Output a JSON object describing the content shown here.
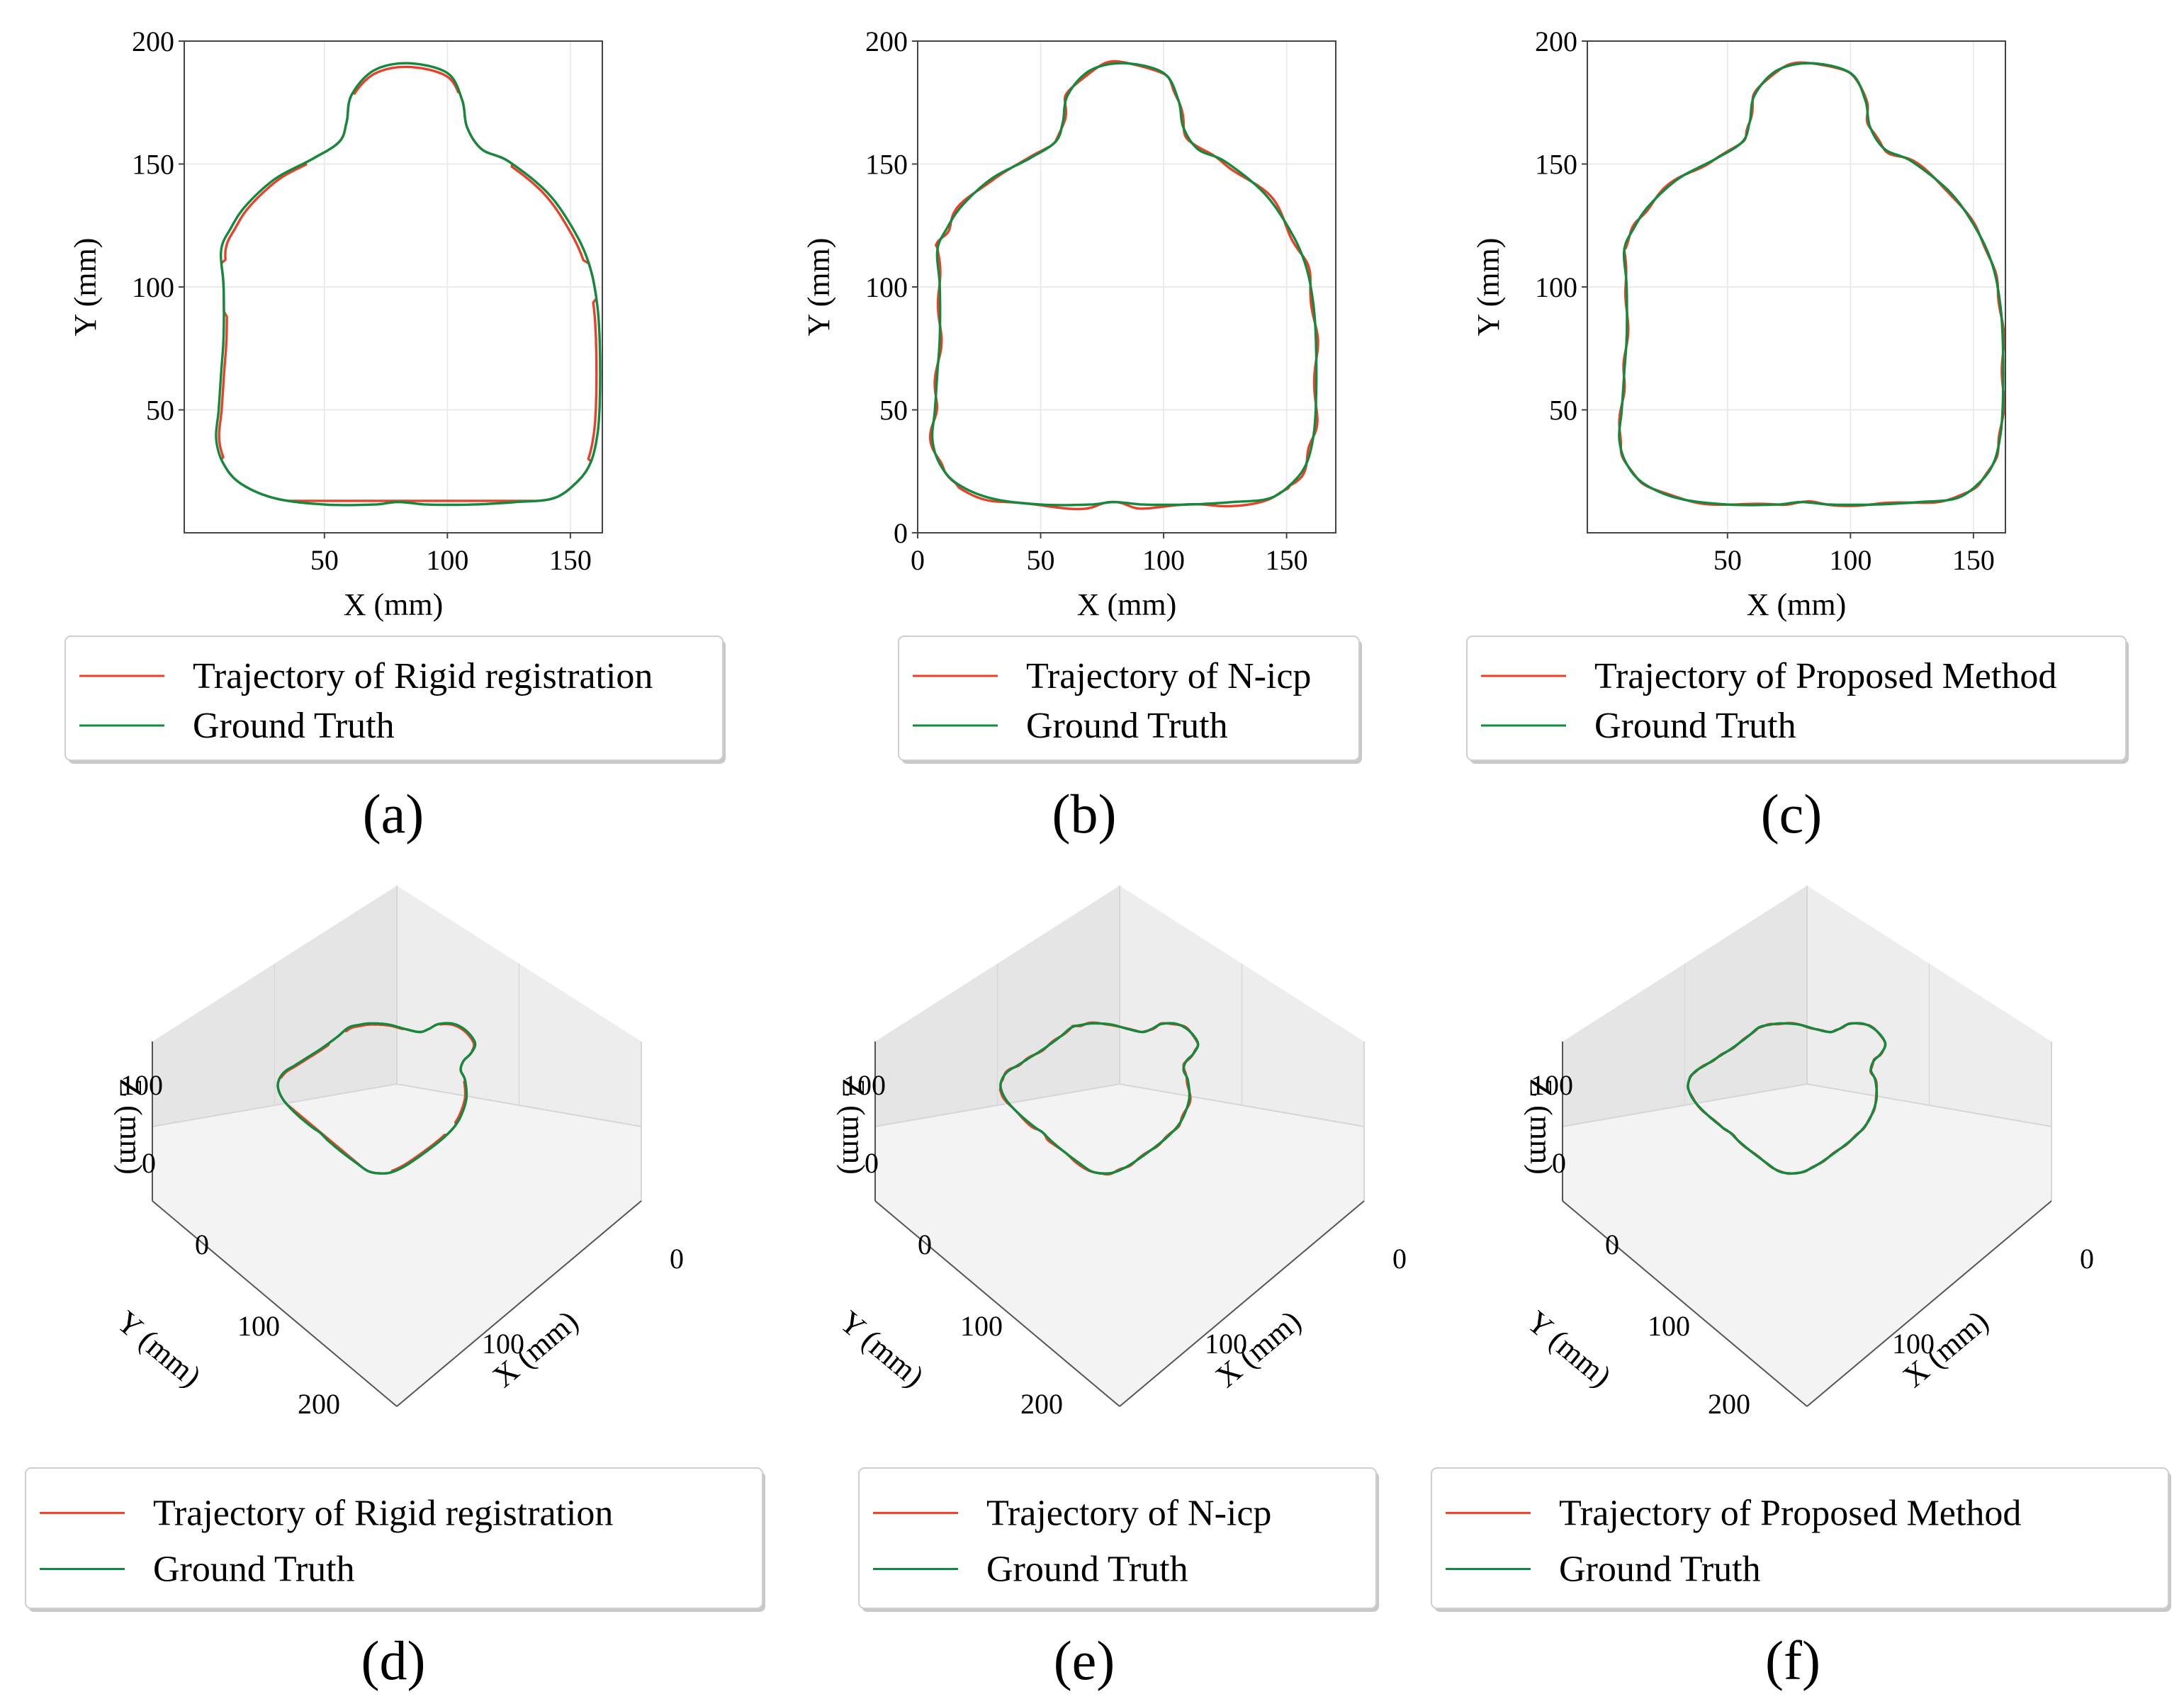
{
  "colors": {
    "trajectory": "#e8402a",
    "ground_truth": "#118a3e",
    "frame": "#444444",
    "grid": "#ebebeb"
  },
  "chart_data": [
    {
      "id": "a",
      "type": "line",
      "caption": "(a)",
      "title": "",
      "xlabel": "X (mm)",
      "ylabel": "Y (mm)",
      "xticks": [
        "50",
        "100",
        "150"
      ],
      "yticks": [
        "50",
        "100",
        "150",
        "200"
      ],
      "xlim": [
        -7,
        163
      ],
      "ylim": [
        0,
        200
      ],
      "legend": {
        "placement": "below",
        "entries": [
          "Trajectory of Rigid registration",
          "Ground Truth"
        ]
      },
      "series": [
        {
          "name": "Trajectory of Rigid registration",
          "shape": "rigid_offset",
          "offset_x": 0,
          "offset_y": 0
        },
        {
          "name": "Ground Truth",
          "shape": "outline"
        }
      ]
    },
    {
      "id": "b",
      "type": "line",
      "caption": "(b)",
      "title": "",
      "xlabel": "X (mm)",
      "ylabel": "Y (mm)",
      "xticks": [
        "0",
        "50",
        "100",
        "150"
      ],
      "yticks": [
        "0",
        "50",
        "100",
        "150",
        "200"
      ],
      "xlim": [
        0,
        170
      ],
      "ylim": [
        0,
        200
      ],
      "legend": {
        "placement": "below",
        "entries": [
          "Trajectory of N-icp",
          "Ground Truth"
        ]
      },
      "series": [
        {
          "name": "Trajectory of N-icp",
          "shape": "wobble"
        },
        {
          "name": "Ground Truth",
          "shape": "outline"
        }
      ]
    },
    {
      "id": "c",
      "type": "line",
      "caption": "(c)",
      "title": "",
      "xlabel": "X (mm)",
      "ylabel": "Y (mm)",
      "xticks": [
        "50",
        "100",
        "150"
      ],
      "yticks": [
        "50",
        "100",
        "150",
        "200"
      ],
      "xlim": [
        -7,
        163
      ],
      "ylim": [
        0,
        200
      ],
      "legend": {
        "placement": "below",
        "entries": [
          "Trajectory of Proposed Method",
          "Ground Truth"
        ]
      },
      "series": [
        {
          "name": "Trajectory of Proposed Method",
          "shape": "small_wobble"
        },
        {
          "name": "Ground Truth",
          "shape": "outline"
        }
      ]
    },
    {
      "id": "d",
      "type": "line",
      "caption": "(d)",
      "projection": "3d",
      "xlabel": "X (mm)",
      "ylabel": "Y (mm)",
      "zlabel": "Z (mm)",
      "xticks": [
        "0",
        "100"
      ],
      "yticks": [
        "0",
        "100",
        "200"
      ],
      "zticks": [
        "0",
        "100"
      ],
      "legend": {
        "placement": "below",
        "entries": [
          "Trajectory of Rigid registration",
          "Ground Truth"
        ]
      },
      "series": [
        {
          "name": "Trajectory of Rigid registration"
        },
        {
          "name": "Ground Truth"
        }
      ]
    },
    {
      "id": "e",
      "type": "line",
      "caption": "(e)",
      "projection": "3d",
      "xlabel": "X (mm)",
      "ylabel": "Y (mm)",
      "zlabel": "Z (mm)",
      "xticks": [
        "0",
        "100"
      ],
      "yticks": [
        "0",
        "100",
        "200"
      ],
      "zticks": [
        "0",
        "100"
      ],
      "legend": {
        "placement": "below",
        "entries": [
          "Trajectory of N-icp",
          "Ground Truth"
        ]
      },
      "series": [
        {
          "name": "Trajectory of N-icp"
        },
        {
          "name": "Ground Truth"
        }
      ]
    },
    {
      "id": "f",
      "type": "line",
      "caption": "(f)",
      "projection": "3d",
      "xlabel": "X (mm)",
      "ylabel": "Y (mm)",
      "zlabel": "Z (mm)",
      "xticks": [
        "0",
        "100"
      ],
      "yticks": [
        "0",
        "100",
        "200"
      ],
      "zticks": [
        "0",
        "100"
      ],
      "legend": {
        "placement": "below",
        "entries": [
          "Trajectory of Proposed Method",
          "Ground Truth"
        ]
      },
      "series": [
        {
          "name": "Trajectory of Proposed Method"
        },
        {
          "name": "Ground Truth"
        }
      ]
    }
  ]
}
